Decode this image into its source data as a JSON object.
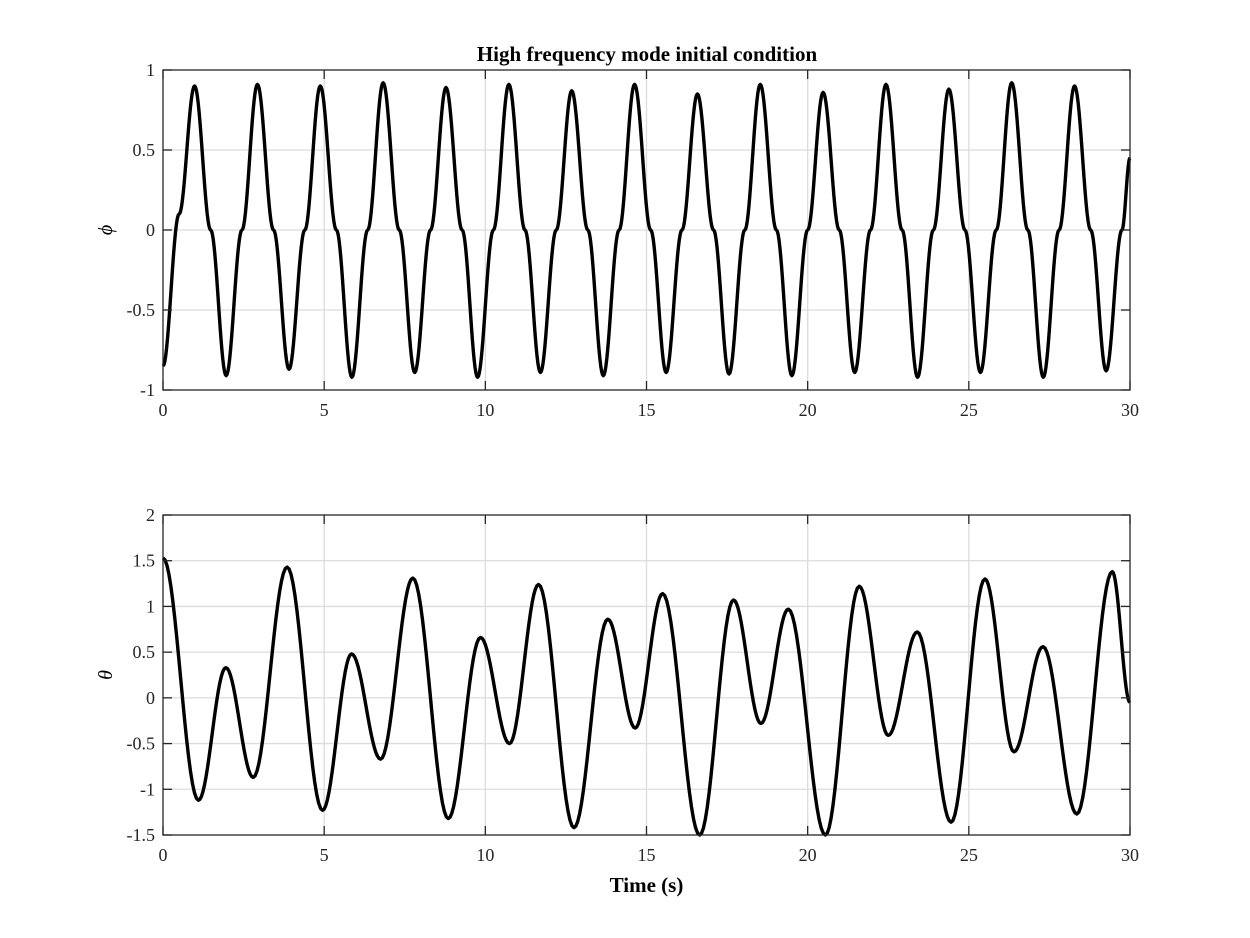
{
  "figure": {
    "title": "High frequency mode initial condition"
  },
  "chart_data": [
    {
      "type": "line",
      "title": "High frequency mode initial condition",
      "xlabel": "",
      "ylabel": "ϕ",
      "xlim": [
        0,
        30
      ],
      "ylim": [
        -1,
        1
      ],
      "xticks": [
        0,
        5,
        10,
        15,
        20,
        25,
        30
      ],
      "xtick_labels": [
        "0",
        "5",
        "10",
        "15",
        "20",
        "25",
        "30"
      ],
      "yticks": [
        -1,
        -0.5,
        0,
        0.5,
        1
      ],
      "ytick_labels": [
        "-1",
        "-0.5",
        "0",
        "0.5",
        "1"
      ],
      "grid": true,
      "series": [
        {
          "color": "#000000",
          "x": [
            0,
            0.5,
            0.98,
            1.48,
            1.96,
            2.45,
            2.93,
            3.43,
            3.91,
            4.4,
            4.88,
            5.38,
            5.86,
            6.35,
            6.83,
            7.33,
            7.81,
            8.3,
            8.78,
            9.28,
            9.76,
            10.25,
            10.73,
            11.23,
            11.71,
            12.2,
            12.68,
            13.18,
            13.66,
            14.15,
            14.63,
            15.13,
            15.61,
            16.1,
            16.58,
            17.08,
            17.56,
            18.05,
            18.53,
            19.03,
            19.51,
            20.0,
            20.48,
            20.98,
            21.46,
            21.95,
            22.43,
            22.93,
            23.41,
            23.9,
            24.38,
            24.88,
            25.36,
            25.85,
            26.33,
            26.83,
            27.31,
            27.8,
            28.28,
            28.78,
            29.26,
            29.75,
            30.0
          ],
          "y": [
            -0.85,
            0.1,
            0.9,
            0.0,
            -0.91,
            0.0,
            0.91,
            0.0,
            -0.87,
            0.0,
            0.9,
            0.0,
            -0.92,
            0.0,
            0.92,
            0.0,
            -0.89,
            0.0,
            0.89,
            0.0,
            -0.92,
            0.0,
            0.91,
            0.0,
            -0.89,
            0.0,
            0.87,
            0.0,
            -0.91,
            0.0,
            0.91,
            0.0,
            -0.89,
            0.0,
            0.85,
            0.0,
            -0.9,
            0.0,
            0.91,
            0.0,
            -0.91,
            0.0,
            0.86,
            0.0,
            -0.89,
            0.0,
            0.91,
            0.0,
            -0.92,
            0.0,
            0.88,
            0.0,
            -0.89,
            0.0,
            0.92,
            0.0,
            -0.92,
            0.0,
            0.9,
            0.0,
            -0.88,
            0.0,
            0.45
          ]
        }
      ]
    },
    {
      "type": "line",
      "title": "",
      "xlabel": "Time (s)",
      "ylabel": "θ",
      "xlim": [
        0,
        30
      ],
      "ylim": [
        -1.5,
        2
      ],
      "xticks": [
        0,
        5,
        10,
        15,
        20,
        25,
        30
      ],
      "xtick_labels": [
        "0",
        "5",
        "10",
        "15",
        "20",
        "25",
        "30"
      ],
      "yticks": [
        -1.5,
        -1,
        -0.5,
        0,
        0.5,
        1,
        1.5,
        2
      ],
      "ytick_labels": [
        "-1.5",
        "-1",
        "-0.5",
        "0",
        "0.5",
        "1",
        "1.5",
        "2"
      ],
      "grid": true,
      "series": [
        {
          "color": "#000000",
          "x": [
            0,
            1.1,
            1.95,
            2.8,
            3.85,
            4.95,
            5.85,
            6.75,
            7.75,
            8.85,
            9.85,
            10.75,
            11.65,
            12.75,
            13.8,
            14.65,
            15.5,
            16.65,
            17.7,
            18.55,
            19.4,
            20.55,
            21.6,
            22.5,
            23.4,
            24.45,
            25.5,
            26.4,
            27.3,
            28.35,
            29.45,
            30.0
          ],
          "y": [
            1.53,
            -1.12,
            0.33,
            -0.87,
            1.43,
            -1.23,
            0.48,
            -0.67,
            1.31,
            -1.32,
            0.66,
            -0.5,
            1.24,
            -1.42,
            0.86,
            -0.33,
            1.14,
            -1.5,
            1.07,
            -0.28,
            0.97,
            -1.5,
            1.22,
            -0.41,
            0.72,
            -1.36,
            1.3,
            -0.59,
            0.56,
            -1.27,
            1.38,
            -0.05
          ]
        }
      ]
    }
  ]
}
